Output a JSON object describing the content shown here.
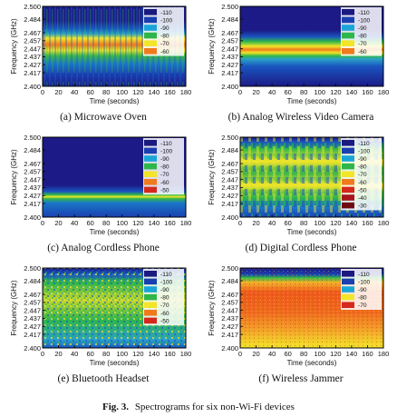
{
  "figure_caption": {
    "label": "Fig. 3.",
    "text": "Spectrograms for six non-Wi-Fi devices"
  },
  "chart_data": [
    {
      "type": "heatmap",
      "caption": "(a) Microwave Oven",
      "xlabel": "Time (seconds)",
      "ylabel": "Frequency (GHz)",
      "x_ticks": [
        "0",
        "20",
        "40",
        "60",
        "80",
        "100",
        "120",
        "140",
        "160",
        "180"
      ],
      "y_ticks": [
        "2.500",
        "2.484",
        "2.467",
        "2.457",
        "2.447",
        "2.437",
        "2.427",
        "2.417",
        "2.400"
      ],
      "xlim": [
        0,
        180
      ],
      "ylim": [
        2.4,
        2.5
      ],
      "legend_position": "top-right",
      "legend": [
        {
          "label": "-110",
          "color": "#1a1a80"
        },
        {
          "label": "-100",
          "color": "#1a3fb0"
        },
        {
          "label": "-90",
          "color": "#1aa5d8"
        },
        {
          "label": "-80",
          "color": "#2fb64a"
        },
        {
          "label": "-70",
          "color": "#f2e52a"
        },
        {
          "label": "-60",
          "color": "#f07a1c"
        }
      ]
    },
    {
      "type": "heatmap",
      "caption": "(b) Analog Wireless Video Camera",
      "xlabel": "Time (seconds)",
      "ylabel": "Frequency (GHz)",
      "x_ticks": [
        "0",
        "20",
        "40",
        "60",
        "80",
        "100",
        "120",
        "140",
        "160",
        "180"
      ],
      "y_ticks": [
        "2.500",
        "2.484",
        "2.467",
        "2.457",
        "2.447",
        "2.437",
        "2.427",
        "2.417",
        "2.400"
      ],
      "xlim": [
        0,
        180
      ],
      "ylim": [
        2.4,
        2.5
      ],
      "legend_position": "top-right",
      "legend": [
        {
          "label": "-110",
          "color": "#1a1a80"
        },
        {
          "label": "-100",
          "color": "#1a3fb0"
        },
        {
          "label": "-90",
          "color": "#1aa5d8"
        },
        {
          "label": "-80",
          "color": "#2fb64a"
        },
        {
          "label": "-70",
          "color": "#f2e52a"
        },
        {
          "label": "-60",
          "color": "#f07a1c"
        }
      ]
    },
    {
      "type": "heatmap",
      "caption": "(c) Analog Cordless Phone",
      "xlabel": "Time (seconds)",
      "ylabel": "Frequency (GHz)",
      "x_ticks": [
        "0",
        "20",
        "40",
        "60",
        "80",
        "100",
        "120",
        "140",
        "160",
        "180"
      ],
      "y_ticks": [
        "2.500",
        "2.484",
        "2.467",
        "2.457",
        "2.447",
        "2.437",
        "2.427",
        "2.417",
        "2.400"
      ],
      "xlim": [
        0,
        180
      ],
      "ylim": [
        2.4,
        2.5
      ],
      "legend_position": "top-right",
      "legend": [
        {
          "label": "-110",
          "color": "#1a1a80"
        },
        {
          "label": "-100",
          "color": "#1a3fb0"
        },
        {
          "label": "-90",
          "color": "#1aa5d8"
        },
        {
          "label": "-80",
          "color": "#2fb64a"
        },
        {
          "label": "-70",
          "color": "#f2e52a"
        },
        {
          "label": "-60",
          "color": "#f07a1c"
        },
        {
          "label": "-50",
          "color": "#d6281c"
        }
      ]
    },
    {
      "type": "heatmap",
      "caption": "(d) Digital Cordless Phone",
      "xlabel": "Time (seconds)",
      "ylabel": "Frequency (GHz)",
      "x_ticks": [
        "0",
        "20",
        "40",
        "60",
        "80",
        "100",
        "120",
        "140",
        "160",
        "180"
      ],
      "y_ticks": [
        "2.500",
        "2.484",
        "2.467",
        "2.457",
        "2.447",
        "2.437",
        "2.427",
        "2.417",
        "2.400"
      ],
      "xlim": [
        0,
        180
      ],
      "ylim": [
        2.4,
        2.5
      ],
      "legend_position": "top-right",
      "legend": [
        {
          "label": "-110",
          "color": "#1a1a80"
        },
        {
          "label": "-100",
          "color": "#1a3fb0"
        },
        {
          "label": "-90",
          "color": "#1aa5d8"
        },
        {
          "label": "-80",
          "color": "#2fb64a"
        },
        {
          "label": "-70",
          "color": "#f2e52a"
        },
        {
          "label": "-60",
          "color": "#f07a1c"
        },
        {
          "label": "-50",
          "color": "#d6281c"
        },
        {
          "label": "-40",
          "color": "#a8141c"
        },
        {
          "label": "-30",
          "color": "#6e0b12"
        }
      ]
    },
    {
      "type": "heatmap",
      "caption": "(e) Bluetooth Headset",
      "xlabel": "Time (seconds)",
      "ylabel": "Frequency (GHz)",
      "x_ticks": [
        "0",
        "20",
        "40",
        "60",
        "80",
        "100",
        "120",
        "140",
        "160",
        "180"
      ],
      "y_ticks": [
        "2.500",
        "2.484",
        "2.467",
        "2.457",
        "2.447",
        "2.437",
        "2.427",
        "2.417",
        "2.400"
      ],
      "xlim": [
        0,
        180
      ],
      "ylim": [
        2.4,
        2.5
      ],
      "legend_position": "top-right",
      "legend": [
        {
          "label": "-110",
          "color": "#1a1a80"
        },
        {
          "label": "-100",
          "color": "#1a3fb0"
        },
        {
          "label": "-90",
          "color": "#1aa5d8"
        },
        {
          "label": "-80",
          "color": "#2fb64a"
        },
        {
          "label": "-70",
          "color": "#f2e52a"
        },
        {
          "label": "-60",
          "color": "#f07a1c"
        },
        {
          "label": "-50",
          "color": "#d6281c"
        }
      ]
    },
    {
      "type": "heatmap",
      "caption": "(f) Wireless Jammer",
      "xlabel": "Time (seconds)",
      "ylabel": "Frequency (GHz)",
      "x_ticks": [
        "0",
        "20",
        "40",
        "60",
        "80",
        "100",
        "120",
        "140",
        "160",
        "180"
      ],
      "y_ticks": [
        "2.500",
        "2.484",
        "2.467",
        "2.457",
        "2.447",
        "2.437",
        "2.427",
        "2.417",
        "2.400"
      ],
      "xlim": [
        0,
        180
      ],
      "ylim": [
        2.4,
        2.5
      ],
      "legend_position": "top-right",
      "legend": [
        {
          "label": "-110",
          "color": "#1a1a80"
        },
        {
          "label": "-100",
          "color": "#1a3fb0"
        },
        {
          "label": "-90",
          "color": "#1aa5d8"
        },
        {
          "label": "-80",
          "color": "#f2e52a"
        },
        {
          "label": "-70",
          "color": "#d6281c"
        }
      ]
    }
  ]
}
